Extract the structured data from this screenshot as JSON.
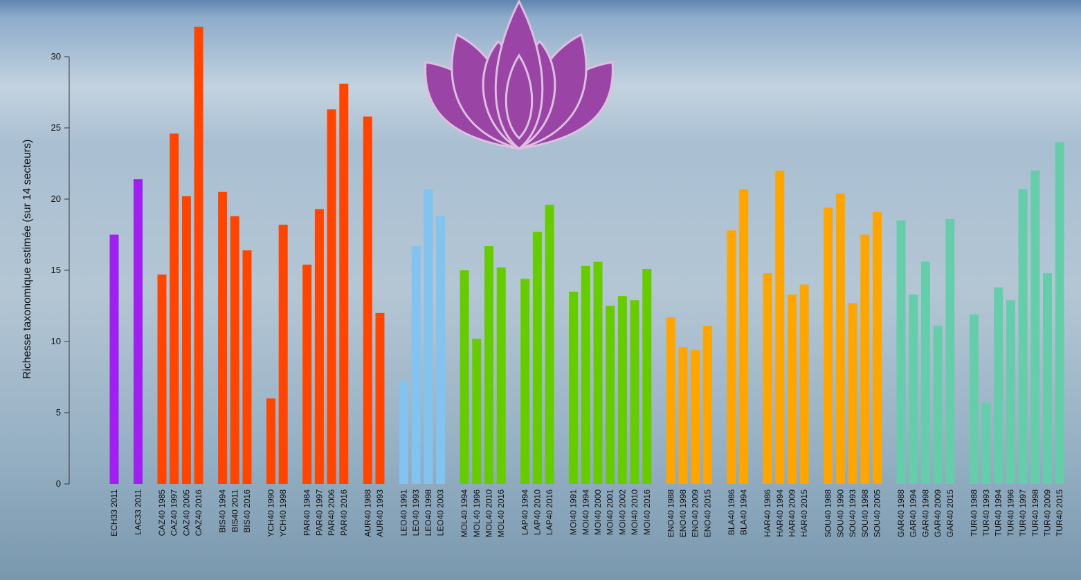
{
  "chart_data": {
    "type": "bar",
    "y_label": "Richesse taxonomique estimée (sur 14 secteurs)",
    "ylim": [
      0,
      30
    ],
    "yticks": [
      0,
      5,
      10,
      15,
      20,
      25,
      30
    ],
    "categories": [
      "ECH33 2011",
      "LAC33 2011",
      "CAZ40 1985",
      "CAZ40 1997",
      "CAZ40 2005",
      "CAZ40 2016",
      "BIS40 1994",
      "BIS40 2011",
      "BIS40 2016",
      "YCH40 1990",
      "YCH40 1998",
      "PAR40 1984",
      "PAR40 1997",
      "PAR40 2006",
      "PAR40 2016",
      "AUR40 1988",
      "AUR40 1993",
      "LEO40 1991",
      "LEO40 1993",
      "LEO40 1998",
      "LEO40 2003",
      "MOL40 1994",
      "MOL40 1996",
      "MOL40 2010",
      "MOL40 2016",
      "LAP40 1994",
      "LAP40 2010",
      "LAP40 2016",
      "MOI40 1991",
      "MOI40 1994",
      "MOI40 2000",
      "MOI40 2001",
      "MOI40 2002",
      "MOI40 2010",
      "MOI40 2016",
      "ENO40 1988",
      "ENO40 1998",
      "ENO40 2009",
      "ENO40 2015",
      "BLA40 1986",
      "BLA40 1994",
      "HAR40 1986",
      "HAR40 1994",
      "HAR40 2009",
      "HAR40 2015",
      "SOU40 1988",
      "SOU40 1990",
      "SOU40 1993",
      "SOU40 1998",
      "SOU40 2005",
      "GAR40 1988",
      "GAR40 1994",
      "GAR40 1998",
      "GAR40 2009",
      "GAR40 2015",
      "TUR40 1988",
      "TUR40 1993",
      "TUR40 1994",
      "TUR40 1996",
      "TUR40 1997",
      "TUR40 1998",
      "TUR40 2009",
      "TUR40 2015"
    ],
    "values": [
      17.5,
      21.4,
      14.7,
      24.6,
      20.2,
      32.1,
      20.5,
      18.8,
      16.4,
      6.0,
      18.2,
      15.4,
      19.3,
      26.3,
      28.1,
      25.8,
      12.0,
      7.2,
      16.7,
      20.7,
      18.8,
      15.0,
      10.2,
      16.7,
      15.2,
      14.4,
      17.7,
      19.6,
      13.5,
      15.3,
      15.6,
      12.5,
      13.2,
      12.9,
      15.1,
      11.7,
      9.6,
      9.4,
      11.1,
      17.8,
      20.7,
      14.8,
      22.0,
      13.3,
      14.0,
      19.4,
      20.4,
      12.7,
      17.5,
      19.1,
      18.5,
      13.3,
      15.6,
      11.1,
      18.6,
      11.9,
      5.7,
      13.8,
      12.9,
      20.7,
      22.0,
      14.8,
      24.0
    ],
    "colors": [
      "#a020f0",
      "#a020f0",
      "#ff4500",
      "#ff4500",
      "#ff4500",
      "#ff4500",
      "#ff4500",
      "#ff4500",
      "#ff4500",
      "#ff4500",
      "#ff4500",
      "#ff4500",
      "#ff4500",
      "#ff4500",
      "#ff4500",
      "#ff4500",
      "#ff4500",
      "#82c3f0",
      "#82c3f0",
      "#82c3f0",
      "#82c3f0",
      "#66cc00",
      "#66cc00",
      "#66cc00",
      "#66cc00",
      "#66cc00",
      "#66cc00",
      "#66cc00",
      "#66cc00",
      "#66cc00",
      "#66cc00",
      "#66cc00",
      "#66cc00",
      "#66cc00",
      "#66cc00",
      "#ffa500",
      "#ffa500",
      "#ffa500",
      "#ffa500",
      "#ffa500",
      "#ffa500",
      "#ffa500",
      "#ffa500",
      "#ffa500",
      "#ffa500",
      "#ffa500",
      "#ffa500",
      "#ffa500",
      "#ffa500",
      "#ffa500",
      "#66cdaa",
      "#66cdaa",
      "#66cdaa",
      "#66cdaa",
      "#66cdaa",
      "#66cdaa",
      "#66cdaa",
      "#66cdaa",
      "#66cdaa",
      "#66cdaa",
      "#66cdaa",
      "#66cdaa",
      "#66cdaa"
    ]
  }
}
